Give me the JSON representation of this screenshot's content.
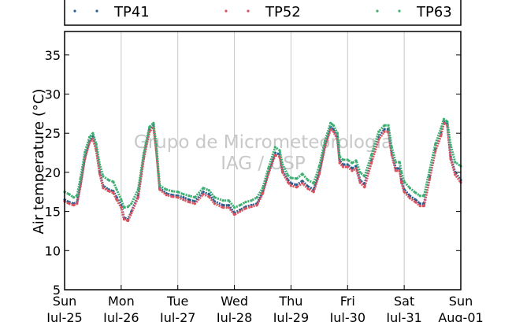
{
  "chart_data": {
    "type": "line",
    "ylabel": "Air temperature (°C)",
    "ylim": [
      5,
      38
    ],
    "yticks": [
      5,
      10,
      15,
      20,
      25,
      30,
      35
    ],
    "xlim": [
      0,
      7
    ],
    "xticks": [
      {
        "x": 0,
        "line1": "Sun",
        "line2": "Jul-25"
      },
      {
        "x": 1,
        "line1": "Mon",
        "line2": "Jul-26"
      },
      {
        "x": 2,
        "line1": "Tue",
        "line2": "Jul-27"
      },
      {
        "x": 3,
        "line1": "Wed",
        "line2": "Jul-28"
      },
      {
        "x": 4,
        "line1": "Thu",
        "line2": "Jul-29"
      },
      {
        "x": 5,
        "line1": "Fri",
        "line2": "Jul-30"
      },
      {
        "x": 6,
        "line1": "Sat",
        "line2": "Jul-31"
      },
      {
        "x": 7,
        "line1": "Sun",
        "line2": "Aug-01"
      }
    ],
    "grid": "vertical",
    "legend_position": "top",
    "watermark": [
      "Grupo de Micrometeorologia",
      "IAG / USP"
    ],
    "series": [
      {
        "name": "TP41",
        "color": "#2a5f93",
        "points": [
          [
            0,
            16.5
          ],
          [
            0.08,
            16.2
          ],
          [
            0.16,
            16.0
          ],
          [
            0.22,
            16.2
          ],
          [
            0.28,
            18.5
          ],
          [
            0.36,
            22.0
          ],
          [
            0.44,
            24.0
          ],
          [
            0.5,
            24.6
          ],
          [
            0.56,
            23.0
          ],
          [
            0.62,
            20.0
          ],
          [
            0.68,
            18.3
          ],
          [
            0.78,
            17.8
          ],
          [
            0.86,
            17.6
          ],
          [
            0.92,
            16.8
          ],
          [
            1.0,
            15.8
          ],
          [
            1.05,
            14.2
          ],
          [
            1.12,
            14.0
          ],
          [
            1.18,
            15.0
          ],
          [
            1.3,
            17.0
          ],
          [
            1.4,
            22.0
          ],
          [
            1.5,
            25.5
          ],
          [
            1.57,
            26.1
          ],
          [
            1.62,
            23.0
          ],
          [
            1.68,
            18.0
          ],
          [
            1.8,
            17.3
          ],
          [
            1.9,
            17.1
          ],
          [
            2.0,
            17.0
          ],
          [
            2.1,
            16.8
          ],
          [
            2.2,
            16.5
          ],
          [
            2.3,
            16.3
          ],
          [
            2.45,
            17.5
          ],
          [
            2.55,
            17.2
          ],
          [
            2.65,
            16.3
          ],
          [
            2.8,
            15.8
          ],
          [
            2.9,
            15.8
          ],
          [
            3.0,
            14.8
          ],
          [
            3.1,
            15.2
          ],
          [
            3.2,
            15.6
          ],
          [
            3.3,
            15.8
          ],
          [
            3.4,
            16.0
          ],
          [
            3.5,
            17.5
          ],
          [
            3.6,
            20.0
          ],
          [
            3.72,
            22.5
          ],
          [
            3.8,
            22.3
          ],
          [
            3.85,
            20.2
          ],
          [
            3.95,
            19.0
          ],
          [
            4.0,
            18.6
          ],
          [
            4.1,
            18.4
          ],
          [
            4.2,
            18.9
          ],
          [
            4.3,
            18.2
          ],
          [
            4.4,
            17.8
          ],
          [
            4.5,
            20.0
          ],
          [
            4.6,
            23.5
          ],
          [
            4.7,
            25.8
          ],
          [
            4.75,
            25.5
          ],
          [
            4.82,
            24.5
          ],
          [
            4.86,
            21.5
          ],
          [
            4.92,
            21.0
          ],
          [
            5.0,
            21.0
          ],
          [
            5.08,
            20.5
          ],
          [
            5.15,
            20.8
          ],
          [
            5.22,
            19.0
          ],
          [
            5.3,
            18.5
          ],
          [
            5.42,
            21.5
          ],
          [
            5.55,
            24.5
          ],
          [
            5.65,
            25.5
          ],
          [
            5.72,
            25.5
          ],
          [
            5.78,
            22.5
          ],
          [
            5.85,
            20.5
          ],
          [
            5.92,
            20.5
          ],
          [
            5.95,
            19.0
          ],
          [
            6.0,
            17.8
          ],
          [
            6.1,
            17.0
          ],
          [
            6.2,
            16.5
          ],
          [
            6.28,
            16.0
          ],
          [
            6.35,
            16.0
          ],
          [
            6.45,
            19.5
          ],
          [
            6.55,
            23.0
          ],
          [
            6.65,
            25.0
          ],
          [
            6.7,
            26.5
          ],
          [
            6.76,
            26.2
          ],
          [
            6.82,
            22.0
          ],
          [
            6.9,
            20.0
          ],
          [
            7.0,
            19.0
          ]
        ]
      },
      {
        "name": "TP52",
        "color": "#d9535f",
        "points": [
          [
            0,
            16.3
          ],
          [
            0.08,
            16.0
          ],
          [
            0.16,
            15.8
          ],
          [
            0.22,
            16.0
          ],
          [
            0.28,
            18.2
          ],
          [
            0.36,
            21.8
          ],
          [
            0.44,
            23.8
          ],
          [
            0.5,
            24.3
          ],
          [
            0.56,
            22.8
          ],
          [
            0.62,
            19.8
          ],
          [
            0.68,
            18.0
          ],
          [
            0.78,
            17.6
          ],
          [
            0.86,
            17.4
          ],
          [
            0.92,
            16.5
          ],
          [
            1.0,
            15.5
          ],
          [
            1.05,
            14.0
          ],
          [
            1.12,
            13.8
          ],
          [
            1.18,
            14.8
          ],
          [
            1.3,
            16.8
          ],
          [
            1.4,
            21.8
          ],
          [
            1.5,
            25.2
          ],
          [
            1.57,
            25.8
          ],
          [
            1.62,
            22.8
          ],
          [
            1.68,
            17.8
          ],
          [
            1.8,
            17.1
          ],
          [
            1.9,
            16.9
          ],
          [
            2.0,
            16.8
          ],
          [
            2.1,
            16.5
          ],
          [
            2.2,
            16.2
          ],
          [
            2.3,
            16.0
          ],
          [
            2.45,
            17.2
          ],
          [
            2.55,
            16.9
          ],
          [
            2.65,
            16.0
          ],
          [
            2.8,
            15.5
          ],
          [
            2.9,
            15.5
          ],
          [
            3.0,
            14.6
          ],
          [
            3.1,
            15.0
          ],
          [
            3.2,
            15.4
          ],
          [
            3.3,
            15.6
          ],
          [
            3.4,
            15.8
          ],
          [
            3.5,
            17.3
          ],
          [
            3.6,
            19.8
          ],
          [
            3.72,
            22.2
          ],
          [
            3.8,
            22.0
          ],
          [
            3.85,
            20.0
          ],
          [
            3.95,
            18.7
          ],
          [
            4.0,
            18.3
          ],
          [
            4.1,
            18.1
          ],
          [
            4.2,
            18.6
          ],
          [
            4.3,
            17.9
          ],
          [
            4.4,
            17.5
          ],
          [
            4.5,
            19.8
          ],
          [
            4.6,
            23.2
          ],
          [
            4.7,
            25.5
          ],
          [
            4.75,
            25.2
          ],
          [
            4.82,
            24.2
          ],
          [
            4.86,
            21.2
          ],
          [
            4.92,
            20.7
          ],
          [
            5.0,
            20.7
          ],
          [
            5.08,
            20.2
          ],
          [
            5.15,
            20.5
          ],
          [
            5.22,
            18.7
          ],
          [
            5.3,
            18.1
          ],
          [
            5.42,
            21.2
          ],
          [
            5.55,
            24.2
          ],
          [
            5.65,
            25.2
          ],
          [
            5.72,
            25.2
          ],
          [
            5.78,
            22.2
          ],
          [
            5.85,
            20.2
          ],
          [
            5.92,
            20.2
          ],
          [
            5.95,
            18.7
          ],
          [
            6.0,
            17.5
          ],
          [
            6.1,
            16.7
          ],
          [
            6.2,
            16.2
          ],
          [
            6.28,
            15.7
          ],
          [
            6.35,
            15.7
          ],
          [
            6.45,
            19.2
          ],
          [
            6.55,
            22.7
          ],
          [
            6.65,
            24.7
          ],
          [
            6.7,
            26.3
          ],
          [
            6.76,
            26.0
          ],
          [
            6.82,
            21.7
          ],
          [
            6.9,
            19.7
          ],
          [
            7.0,
            18.7
          ]
        ]
      },
      {
        "name": "TP63",
        "color": "#3fae72",
        "points": [
          [
            0,
            17.5
          ],
          [
            0.08,
            17.2
          ],
          [
            0.16,
            16.8
          ],
          [
            0.22,
            17.0
          ],
          [
            0.28,
            19.2
          ],
          [
            0.36,
            22.6
          ],
          [
            0.44,
            24.5
          ],
          [
            0.5,
            25.0
          ],
          [
            0.56,
            23.6
          ],
          [
            0.62,
            21.0
          ],
          [
            0.68,
            19.5
          ],
          [
            0.78,
            19.0
          ],
          [
            0.86,
            18.8
          ],
          [
            0.92,
            17.8
          ],
          [
            1.0,
            16.5
          ],
          [
            1.05,
            15.5
          ],
          [
            1.12,
            15.6
          ],
          [
            1.18,
            16.0
          ],
          [
            1.3,
            17.8
          ],
          [
            1.4,
            22.5
          ],
          [
            1.5,
            25.8
          ],
          [
            1.57,
            26.3
          ],
          [
            1.62,
            23.5
          ],
          [
            1.68,
            18.3
          ],
          [
            1.8,
            17.8
          ],
          [
            1.9,
            17.6
          ],
          [
            2.0,
            17.5
          ],
          [
            2.1,
            17.2
          ],
          [
            2.2,
            17.0
          ],
          [
            2.3,
            16.8
          ],
          [
            2.45,
            18.0
          ],
          [
            2.55,
            17.7
          ],
          [
            2.65,
            16.8
          ],
          [
            2.8,
            16.4
          ],
          [
            2.9,
            16.4
          ],
          [
            3.0,
            15.5
          ],
          [
            3.1,
            15.8
          ],
          [
            3.2,
            16.2
          ],
          [
            3.3,
            16.4
          ],
          [
            3.4,
            16.8
          ],
          [
            3.5,
            18.0
          ],
          [
            3.6,
            20.5
          ],
          [
            3.72,
            23.2
          ],
          [
            3.8,
            22.8
          ],
          [
            3.85,
            21.0
          ],
          [
            3.95,
            19.6
          ],
          [
            4.0,
            19.3
          ],
          [
            4.1,
            19.2
          ],
          [
            4.2,
            19.8
          ],
          [
            4.3,
            19.0
          ],
          [
            4.4,
            18.6
          ],
          [
            4.5,
            20.8
          ],
          [
            4.6,
            24.0
          ],
          [
            4.7,
            26.3
          ],
          [
            4.75,
            26.0
          ],
          [
            4.82,
            25.0
          ],
          [
            4.86,
            22.0
          ],
          [
            4.92,
            21.6
          ],
          [
            5.0,
            21.6
          ],
          [
            5.08,
            21.2
          ],
          [
            5.15,
            21.5
          ],
          [
            5.22,
            20.0
          ],
          [
            5.3,
            19.5
          ],
          [
            5.42,
            22.2
          ],
          [
            5.55,
            25.2
          ],
          [
            5.65,
            26.0
          ],
          [
            5.72,
            26.0
          ],
          [
            5.78,
            23.2
          ],
          [
            5.85,
            21.3
          ],
          [
            5.92,
            21.3
          ],
          [
            5.95,
            20.0
          ],
          [
            6.0,
            18.8
          ],
          [
            6.1,
            18.0
          ],
          [
            6.2,
            17.4
          ],
          [
            6.28,
            17.0
          ],
          [
            6.35,
            17.0
          ],
          [
            6.45,
            20.3
          ],
          [
            6.55,
            23.6
          ],
          [
            6.65,
            25.6
          ],
          [
            6.7,
            26.8
          ],
          [
            6.76,
            26.5
          ],
          [
            6.82,
            23.5
          ],
          [
            6.9,
            21.3
          ],
          [
            7.0,
            20.8
          ]
        ]
      }
    ]
  }
}
